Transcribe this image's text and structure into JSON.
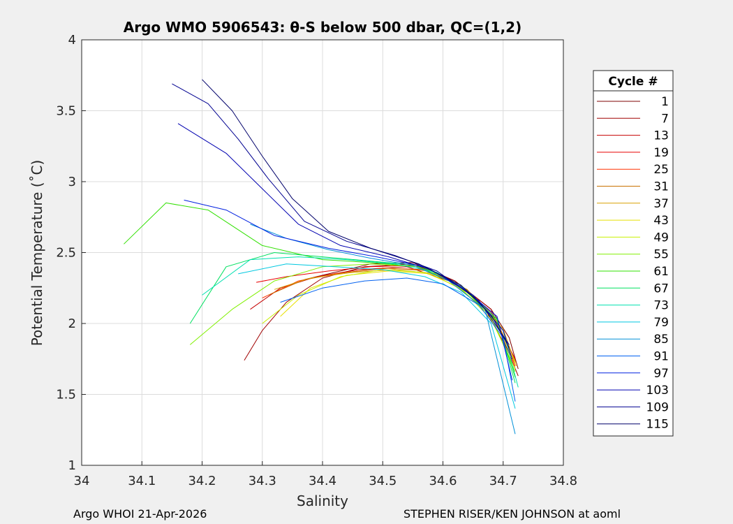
{
  "chart_data": {
    "type": "line",
    "title": "Argo WMO 5906543: θ-S below 500 dbar,  QC=(1,2)",
    "xlabel": "Salinity",
    "ylabel": "Potential Temperature (˚C)",
    "xlim": [
      34.0,
      34.8
    ],
    "ylim": [
      1.0,
      4.0
    ],
    "xticks": [
      34,
      34.1,
      34.2,
      34.3,
      34.4,
      34.5,
      34.6,
      34.7,
      34.8
    ],
    "xtick_labels": [
      "34",
      "34.1",
      "34.2",
      "34.3",
      "34.4",
      "34.5",
      "34.6",
      "34.7",
      "34.8"
    ],
    "yticks": [
      1,
      1.5,
      2,
      2.5,
      3,
      3.5,
      4
    ],
    "ytick_labels": [
      "1",
      "1.5",
      "2",
      "2.5",
      "3",
      "3.5",
      "4"
    ],
    "grid": true,
    "legend_title": "Cycle #",
    "legend_position": "outside-right",
    "series": [
      {
        "name": "1",
        "color": "#7f0000",
        "points": [
          [
            34.37,
            2.31
          ],
          [
            34.42,
            2.36
          ],
          [
            34.48,
            2.42
          ],
          [
            34.55,
            2.43
          ],
          [
            34.62,
            2.3
          ],
          [
            34.68,
            2.1
          ],
          [
            34.71,
            1.9
          ],
          [
            34.725,
            1.68
          ]
        ]
      },
      {
        "name": "7",
        "color": "#a00000",
        "points": [
          [
            34.27,
            1.74
          ],
          [
            34.3,
            1.95
          ],
          [
            34.34,
            2.15
          ],
          [
            34.4,
            2.32
          ],
          [
            34.47,
            2.4
          ],
          [
            34.55,
            2.42
          ],
          [
            34.62,
            2.3
          ],
          [
            34.68,
            2.1
          ],
          [
            34.725,
            1.63
          ]
        ]
      },
      {
        "name": "13",
        "color": "#c40000",
        "points": [
          [
            34.28,
            2.1
          ],
          [
            34.33,
            2.25
          ],
          [
            34.39,
            2.33
          ],
          [
            34.46,
            2.38
          ],
          [
            34.54,
            2.4
          ],
          [
            34.61,
            2.3
          ],
          [
            34.67,
            2.1
          ],
          [
            34.72,
            1.72
          ]
        ]
      },
      {
        "name": "19",
        "color": "#e80000",
        "points": [
          [
            34.29,
            2.29
          ],
          [
            34.34,
            2.33
          ],
          [
            34.41,
            2.37
          ],
          [
            34.48,
            2.4
          ],
          [
            34.55,
            2.41
          ],
          [
            34.62,
            2.29
          ],
          [
            34.68,
            2.08
          ],
          [
            34.72,
            1.75
          ]
        ]
      },
      {
        "name": "25",
        "color": "#ff3000",
        "points": [
          [
            34.3,
            2.18
          ],
          [
            34.36,
            2.3
          ],
          [
            34.42,
            2.35
          ],
          [
            34.5,
            2.39
          ],
          [
            34.57,
            2.38
          ],
          [
            34.63,
            2.26
          ],
          [
            34.69,
            2.02
          ],
          [
            34.72,
            1.7
          ]
        ]
      },
      {
        "name": "31",
        "color": "#c87000",
        "points": [
          [
            34.31,
            2.2
          ],
          [
            34.37,
            2.31
          ],
          [
            34.44,
            2.36
          ],
          [
            34.51,
            2.39
          ],
          [
            34.58,
            2.37
          ],
          [
            34.64,
            2.24
          ],
          [
            34.69,
            2.01
          ],
          [
            34.722,
            1.72
          ]
        ]
      },
      {
        "name": "37",
        "color": "#d8a000",
        "points": [
          [
            34.32,
            2.24
          ],
          [
            34.38,
            2.32
          ],
          [
            34.45,
            2.36
          ],
          [
            34.52,
            2.38
          ],
          [
            34.59,
            2.35
          ],
          [
            34.65,
            2.2
          ],
          [
            34.7,
            1.96
          ],
          [
            34.72,
            1.72
          ]
        ]
      },
      {
        "name": "43",
        "color": "#e8e000",
        "points": [
          [
            34.33,
            2.05
          ],
          [
            34.38,
            2.25
          ],
          [
            34.44,
            2.34
          ],
          [
            34.51,
            2.37
          ],
          [
            34.58,
            2.35
          ],
          [
            34.64,
            2.22
          ],
          [
            34.69,
            2.0
          ],
          [
            34.722,
            1.7
          ]
        ]
      },
      {
        "name": "49",
        "color": "#c8f000",
        "points": [
          [
            34.3,
            2.0
          ],
          [
            34.36,
            2.2
          ],
          [
            34.43,
            2.33
          ],
          [
            34.5,
            2.38
          ],
          [
            34.57,
            2.36
          ],
          [
            34.63,
            2.25
          ],
          [
            34.68,
            2.03
          ],
          [
            34.72,
            1.68
          ]
        ]
      },
      {
        "name": "55",
        "color": "#80f000",
        "points": [
          [
            34.18,
            1.85
          ],
          [
            34.25,
            2.1
          ],
          [
            34.32,
            2.3
          ],
          [
            34.4,
            2.4
          ],
          [
            34.48,
            2.42
          ],
          [
            34.56,
            2.4
          ],
          [
            34.62,
            2.28
          ],
          [
            34.68,
            2.05
          ],
          [
            34.72,
            1.66
          ]
        ]
      },
      {
        "name": "61",
        "color": "#30e000",
        "points": [
          [
            34.07,
            2.56
          ],
          [
            34.14,
            2.85
          ],
          [
            34.21,
            2.8
          ],
          [
            34.3,
            2.55
          ],
          [
            34.4,
            2.45
          ],
          [
            34.48,
            2.43
          ],
          [
            34.56,
            2.4
          ],
          [
            34.63,
            2.26
          ],
          [
            34.69,
            2.02
          ],
          [
            34.72,
            1.62
          ]
        ]
      },
      {
        "name": "67",
        "color": "#00e060",
        "points": [
          [
            34.18,
            2.0
          ],
          [
            34.24,
            2.4
          ],
          [
            34.32,
            2.5
          ],
          [
            34.4,
            2.47
          ],
          [
            34.48,
            2.44
          ],
          [
            34.56,
            2.41
          ],
          [
            34.63,
            2.27
          ],
          [
            34.69,
            2.03
          ],
          [
            34.72,
            1.58
          ]
        ]
      },
      {
        "name": "73",
        "color": "#00e0b0",
        "points": [
          [
            34.2,
            2.2
          ],
          [
            34.28,
            2.45
          ],
          [
            34.36,
            2.47
          ],
          [
            34.44,
            2.45
          ],
          [
            34.52,
            2.42
          ],
          [
            34.59,
            2.36
          ],
          [
            34.65,
            2.2
          ],
          [
            34.7,
            1.95
          ],
          [
            34.725,
            1.55
          ]
        ]
      },
      {
        "name": "79",
        "color": "#00c8e0",
        "points": [
          [
            34.26,
            2.35
          ],
          [
            34.34,
            2.42
          ],
          [
            34.42,
            2.4
          ],
          [
            34.5,
            2.38
          ],
          [
            34.57,
            2.33
          ],
          [
            34.63,
            2.22
          ],
          [
            34.68,
            2.0
          ],
          [
            34.72,
            1.4
          ]
        ]
      },
      {
        "name": "85",
        "color": "#0090d8",
        "points": [
          [
            34.28,
            2.7
          ],
          [
            34.34,
            2.6
          ],
          [
            34.41,
            2.52
          ],
          [
            34.48,
            2.46
          ],
          [
            34.55,
            2.41
          ],
          [
            34.61,
            2.3
          ],
          [
            34.67,
            2.1
          ],
          [
            34.72,
            1.22
          ]
        ]
      },
      {
        "name": "91",
        "color": "#0060f0",
        "points": [
          [
            34.33,
            2.15
          ],
          [
            34.4,
            2.25
          ],
          [
            34.47,
            2.3
          ],
          [
            34.54,
            2.32
          ],
          [
            34.6,
            2.28
          ],
          [
            34.66,
            2.13
          ],
          [
            34.7,
            1.9
          ],
          [
            34.72,
            1.45
          ]
        ]
      },
      {
        "name": "97",
        "color": "#0020e0",
        "points": [
          [
            34.17,
            2.87
          ],
          [
            34.24,
            2.8
          ],
          [
            34.32,
            2.62
          ],
          [
            34.41,
            2.53
          ],
          [
            34.49,
            2.47
          ],
          [
            34.57,
            2.4
          ],
          [
            34.63,
            2.26
          ],
          [
            34.69,
            2.05
          ],
          [
            34.715,
            1.6
          ]
        ]
      },
      {
        "name": "103",
        "color": "#0000b0",
        "points": [
          [
            34.16,
            3.41
          ],
          [
            34.24,
            3.2
          ],
          [
            34.3,
            2.95
          ],
          [
            34.36,
            2.7
          ],
          [
            34.43,
            2.55
          ],
          [
            34.51,
            2.47
          ],
          [
            34.58,
            2.38
          ],
          [
            34.65,
            2.2
          ],
          [
            34.7,
            1.95
          ],
          [
            34.715,
            1.75
          ]
        ]
      },
      {
        "name": "109",
        "color": "#000090",
        "points": [
          [
            34.15,
            3.69
          ],
          [
            34.21,
            3.55
          ],
          [
            34.26,
            3.3
          ],
          [
            34.31,
            3.02
          ],
          [
            34.37,
            2.72
          ],
          [
            34.44,
            2.58
          ],
          [
            34.52,
            2.48
          ],
          [
            34.59,
            2.37
          ],
          [
            34.66,
            2.16
          ],
          [
            34.71,
            1.85
          ]
        ]
      },
      {
        "name": "115",
        "color": "#00006a",
        "points": [
          [
            34.2,
            3.72
          ],
          [
            34.25,
            3.5
          ],
          [
            34.3,
            3.18
          ],
          [
            34.35,
            2.88
          ],
          [
            34.41,
            2.65
          ],
          [
            34.48,
            2.53
          ],
          [
            34.56,
            2.42
          ],
          [
            34.63,
            2.27
          ],
          [
            34.68,
            2.06
          ],
          [
            34.71,
            1.83
          ]
        ]
      }
    ]
  },
  "footer": {
    "left": "Argo WHOI 21-Apr-2026",
    "right": "STEPHEN RISER/KEN JOHNSON at aoml"
  }
}
